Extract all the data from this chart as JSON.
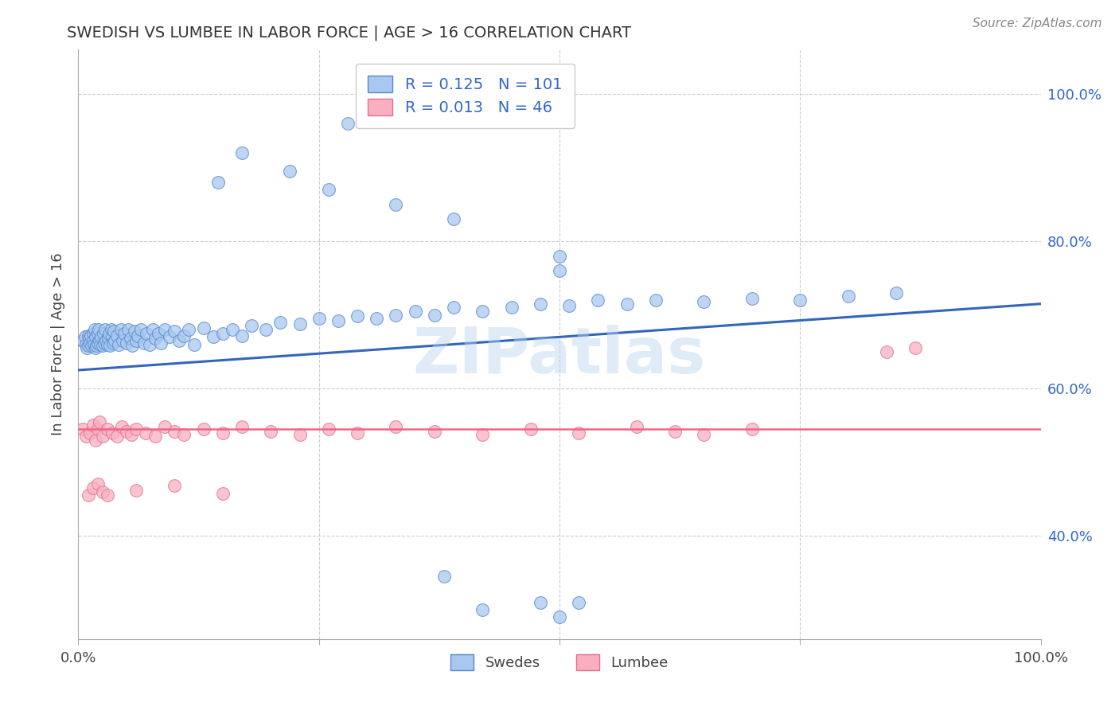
{
  "title": "SWEDISH VS LUMBEE IN LABOR FORCE | AGE > 16 CORRELATION CHART",
  "source": "Source: ZipAtlas.com",
  "ylabel": "In Labor Force | Age > 16",
  "legend1_r": "0.125",
  "legend1_n": "101",
  "legend2_r": "0.013",
  "legend2_n": "46",
  "blue_fill": "#A8C8F0",
  "blue_edge": "#5588CC",
  "pink_fill": "#F8B0C0",
  "pink_edge": "#E07090",
  "line_blue": "#3366BB",
  "line_pink": "#EE6688",
  "rn_color": "#3366CC",
  "watermark": "ZIPatlas",
  "watermark_color": "#B8D4EE",
  "background": "#FFFFFF",
  "grid_color": "#CCCCCC",
  "xlim": [
    0.0,
    1.0
  ],
  "ylim": [
    0.26,
    1.06
  ],
  "blue_line_start_y": 0.625,
  "blue_line_end_y": 0.715,
  "pink_line_y": 0.545,
  "swedes_x": [
    0.005,
    0.007,
    0.008,
    0.009,
    0.01,
    0.01,
    0.011,
    0.012,
    0.013,
    0.014,
    0.015,
    0.015,
    0.016,
    0.017,
    0.018,
    0.018,
    0.019,
    0.02,
    0.02,
    0.021,
    0.022,
    0.023,
    0.024,
    0.025,
    0.026,
    0.027,
    0.028,
    0.029,
    0.03,
    0.031,
    0.032,
    0.033,
    0.034,
    0.035,
    0.036,
    0.037,
    0.038,
    0.04,
    0.042,
    0.044,
    0.046,
    0.048,
    0.05,
    0.052,
    0.054,
    0.056,
    0.058,
    0.06,
    0.062,
    0.065,
    0.068,
    0.071,
    0.074,
    0.077,
    0.08,
    0.083,
    0.086,
    0.09,
    0.095,
    0.1,
    0.105,
    0.11,
    0.115,
    0.12,
    0.13,
    0.14,
    0.15,
    0.16,
    0.17,
    0.18,
    0.195,
    0.21,
    0.23,
    0.25,
    0.27,
    0.29,
    0.31,
    0.33,
    0.35,
    0.37,
    0.39,
    0.42,
    0.45,
    0.48,
    0.51,
    0.54,
    0.57,
    0.6,
    0.65,
    0.7,
    0.75,
    0.8,
    0.85,
    0.5,
    0.5,
    0.39,
    0.33,
    0.26,
    0.22,
    0.17,
    0.145
  ],
  "swedes_y": [
    0.665,
    0.67,
    0.66,
    0.655,
    0.672,
    0.658,
    0.668,
    0.662,
    0.671,
    0.659,
    0.675,
    0.665,
    0.66,
    0.68,
    0.655,
    0.67,
    0.658,
    0.675,
    0.662,
    0.68,
    0.665,
    0.66,
    0.67,
    0.658,
    0.675,
    0.662,
    0.68,
    0.665,
    0.66,
    0.668,
    0.675,
    0.658,
    0.68,
    0.67,
    0.662,
    0.678,
    0.665,
    0.672,
    0.66,
    0.68,
    0.665,
    0.675,
    0.662,
    0.68,
    0.668,
    0.658,
    0.678,
    0.665,
    0.672,
    0.68,
    0.662,
    0.675,
    0.66,
    0.68,
    0.668,
    0.675,
    0.662,
    0.68,
    0.67,
    0.678,
    0.665,
    0.672,
    0.68,
    0.66,
    0.682,
    0.67,
    0.675,
    0.68,
    0.672,
    0.685,
    0.68,
    0.69,
    0.688,
    0.695,
    0.692,
    0.698,
    0.695,
    0.7,
    0.705,
    0.7,
    0.71,
    0.705,
    0.71,
    0.715,
    0.712,
    0.72,
    0.715,
    0.72,
    0.718,
    0.722,
    0.72,
    0.725,
    0.73,
    0.78,
    0.76,
    0.83,
    0.85,
    0.87,
    0.895,
    0.92,
    0.88
  ],
  "swedes_outliers_x": [
    0.38,
    0.42,
    0.48,
    0.5,
    0.52,
    0.28,
    0.3
  ],
  "swedes_outliers_y": [
    0.345,
    0.3,
    0.31,
    0.29,
    0.31,
    0.96,
    1.0
  ],
  "lumbee_x": [
    0.005,
    0.008,
    0.012,
    0.015,
    0.018,
    0.02,
    0.022,
    0.025,
    0.03,
    0.035,
    0.04,
    0.045,
    0.05,
    0.055,
    0.06,
    0.07,
    0.08,
    0.09,
    0.1,
    0.11,
    0.13,
    0.15,
    0.17,
    0.2,
    0.23,
    0.26,
    0.29,
    0.33,
    0.37,
    0.42,
    0.47,
    0.52,
    0.58,
    0.62,
    0.65,
    0.7,
    0.84,
    0.87,
    0.01,
    0.015,
    0.02,
    0.025,
    0.03,
    0.06,
    0.1,
    0.15
  ],
  "lumbee_y": [
    0.545,
    0.535,
    0.54,
    0.55,
    0.53,
    0.545,
    0.555,
    0.535,
    0.545,
    0.54,
    0.535,
    0.548,
    0.542,
    0.538,
    0.545,
    0.54,
    0.535,
    0.548,
    0.542,
    0.538,
    0.545,
    0.54,
    0.548,
    0.542,
    0.538,
    0.545,
    0.54,
    0.548,
    0.542,
    0.538,
    0.545,
    0.54,
    0.548,
    0.542,
    0.538,
    0.545,
    0.65,
    0.655,
    0.455,
    0.465,
    0.47,
    0.46,
    0.455,
    0.462,
    0.468,
    0.458
  ]
}
